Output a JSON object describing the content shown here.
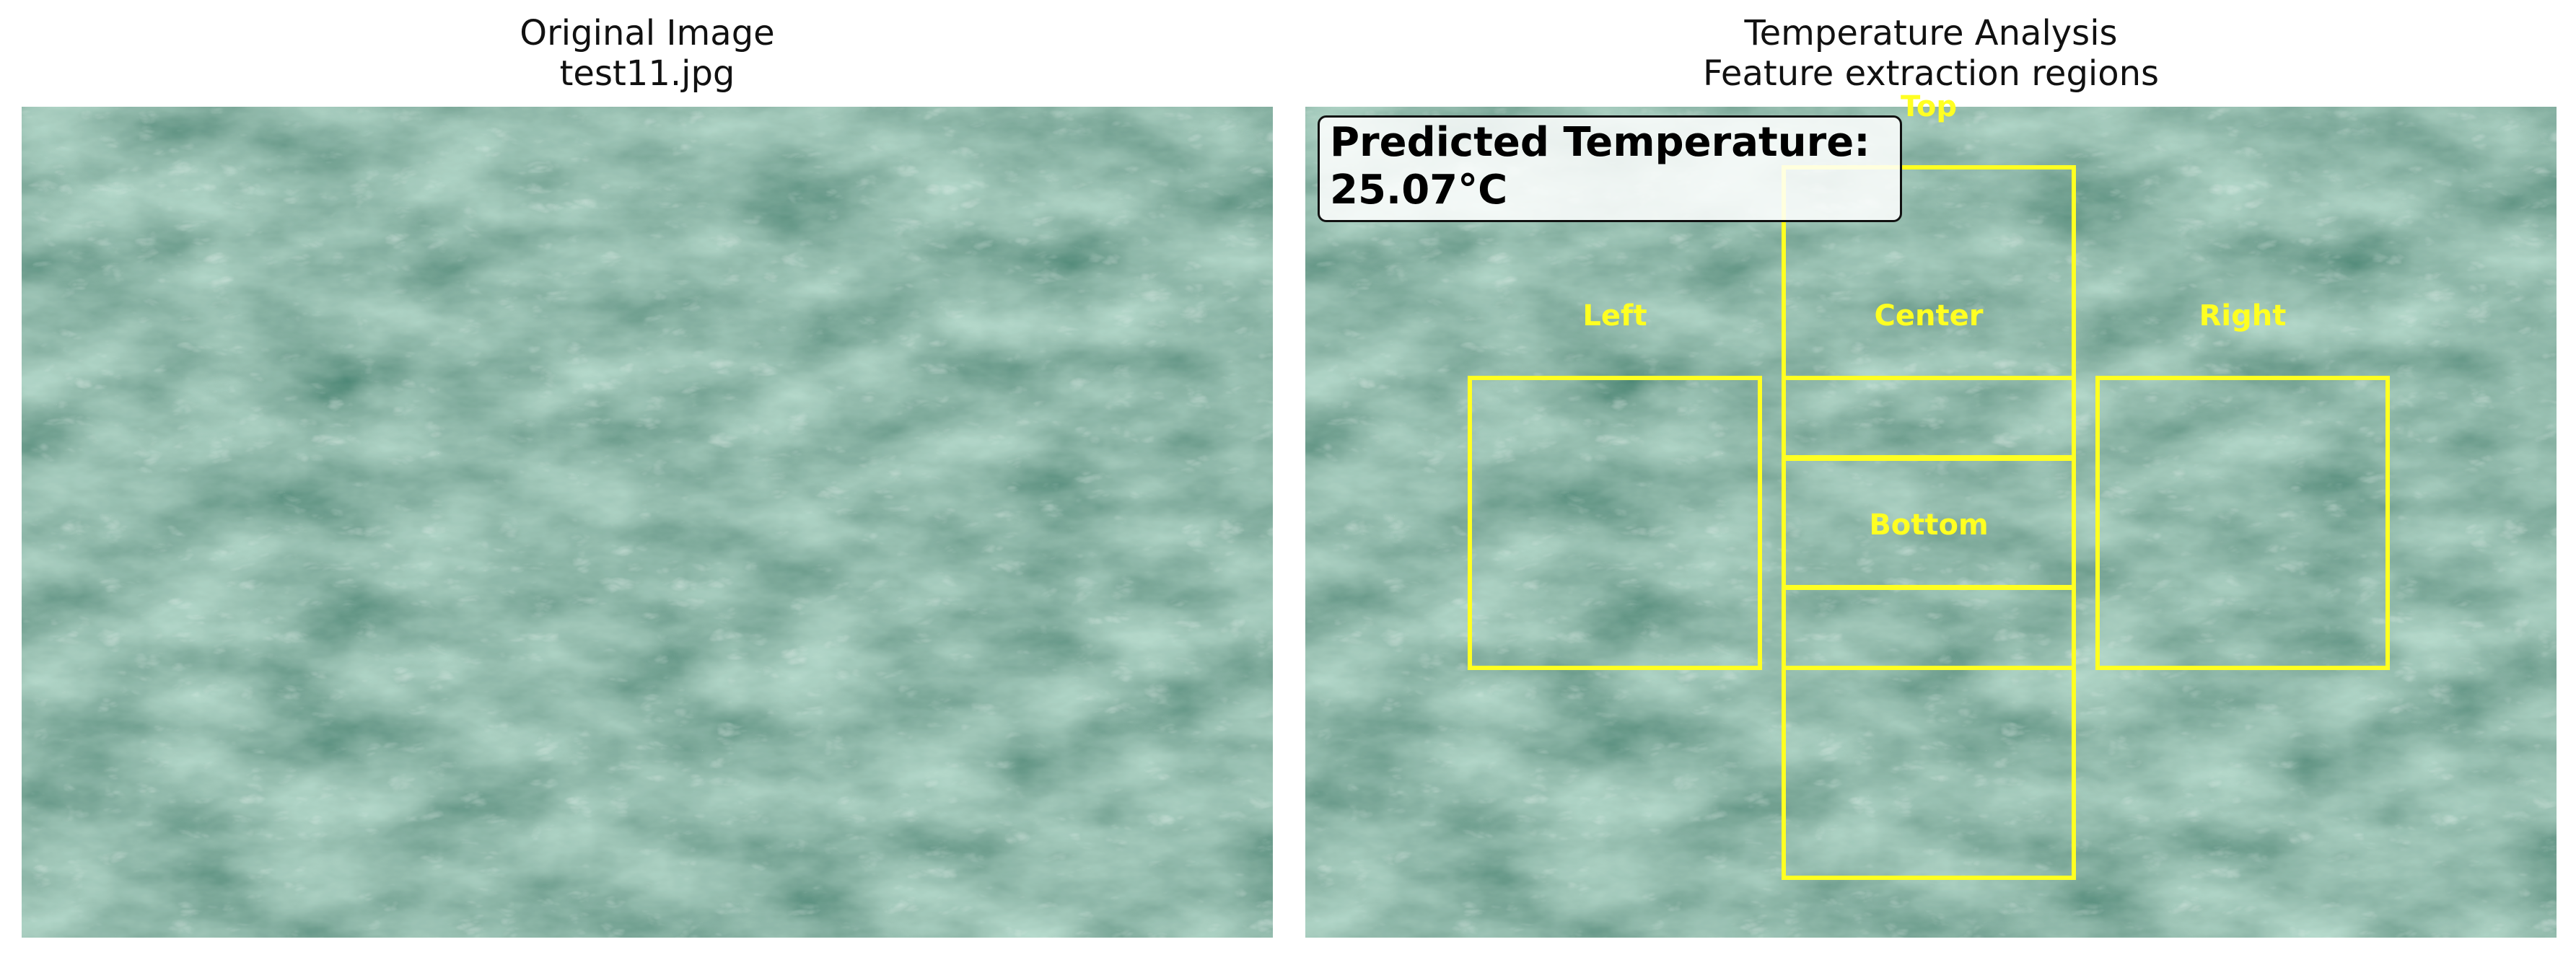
{
  "left_panel": {
    "title": "Original Image",
    "subtitle": "test11.jpg"
  },
  "right_panel": {
    "title": "Temperature Analysis",
    "subtitle": "Feature extraction regions"
  },
  "prediction": {
    "label": "Predicted Temperature:",
    "value": "25.07°C"
  },
  "regions": {
    "top": "Top",
    "left": "Left",
    "center": "Center",
    "right": "Right",
    "bottom": "Bottom"
  },
  "colors": {
    "region_outline": "#ffff22",
    "water_base": "#4e8a74"
  }
}
